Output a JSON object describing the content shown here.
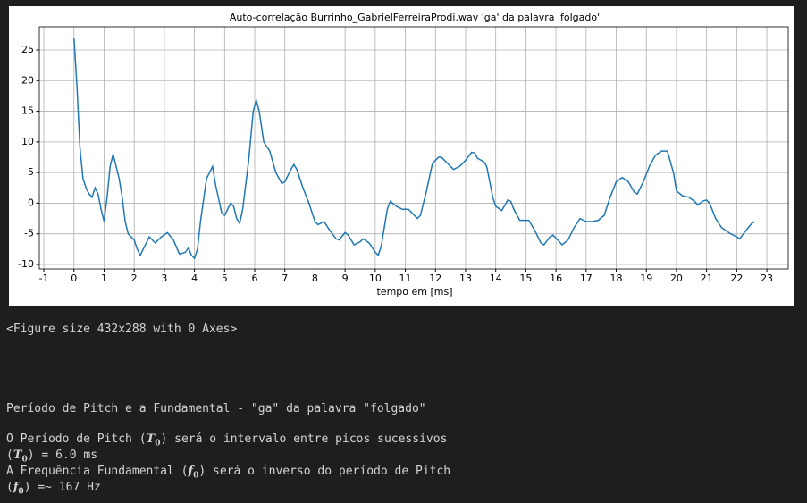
{
  "chart_data": {
    "type": "line",
    "title": "Auto-correlação Burrinho_GabrielFerreiraProdi.wav 'ga' da palavra 'folgado'",
    "x_label": "tempo em [ms]",
    "color": "#1f77b4",
    "grid": true,
    "xlim": [
      -1.15,
      23.71
    ],
    "ylim": [
      -10.73,
      28.79
    ],
    "xticks": [
      -1,
      0,
      1,
      2,
      3,
      4,
      5,
      6,
      7,
      8,
      9,
      10,
      11,
      12,
      13,
      14,
      15,
      16,
      17,
      18,
      19,
      20,
      21,
      22,
      23
    ],
    "yticks": [
      -10,
      -5,
      0,
      5,
      10,
      15,
      20,
      25
    ],
    "x": [
      0,
      0.1,
      0.2,
      0.3,
      0.4,
      0.5,
      0.6,
      0.7,
      0.8,
      0.9,
      1.0,
      1.1,
      1.2,
      1.3,
      1.4,
      1.5,
      1.6,
      1.7,
      1.8,
      2.0,
      2.1,
      2.2,
      2.3,
      2.5,
      2.7,
      2.9,
      3.1,
      3.3,
      3.5,
      3.7,
      3.8,
      3.9,
      4.0,
      4.1,
      4.2,
      4.4,
      4.6,
      4.7,
      4.9,
      5.0,
      5.2,
      5.3,
      5.4,
      5.5,
      5.6,
      5.8,
      5.95,
      6.05,
      6.15,
      6.3,
      6.5,
      6.7,
      6.9,
      7.0,
      7.2,
      7.3,
      7.4,
      7.6,
      7.8,
      8.0,
      8.1,
      8.3,
      8.5,
      8.7,
      8.8,
      9.0,
      9.1,
      9.3,
      9.5,
      9.6,
      9.8,
      10.0,
      10.1,
      10.2,
      10.4,
      10.5,
      10.7,
      10.9,
      11.1,
      11.3,
      11.4,
      11.5,
      11.7,
      11.9,
      12.1,
      12.2,
      12.4,
      12.6,
      12.8,
      13.0,
      13.2,
      13.3,
      13.4,
      13.6,
      13.7,
      13.9,
      14.0,
      14.2,
      14.4,
      14.5,
      14.6,
      14.8,
      15.1,
      15.3,
      15.5,
      15.6,
      15.8,
      15.9,
      16.1,
      16.2,
      16.4,
      16.6,
      16.8,
      17.0,
      17.2,
      17.4,
      17.6,
      17.8,
      18.0,
      18.2,
      18.4,
      18.6,
      18.7,
      18.9,
      19.1,
      19.3,
      19.5,
      19.7,
      19.9,
      20.0,
      20.2,
      20.4,
      20.6,
      20.7,
      20.9,
      21.0,
      21.1,
      21.3,
      21.5,
      21.8,
      22.0,
      22.1,
      22.3,
      22.5,
      22.6
    ],
    "values": [
      27,
      19,
      9,
      4,
      2.5,
      1.5,
      1,
      2.5,
      1.5,
      -1,
      -3,
      1,
      6,
      8,
      6,
      4,
      1,
      -3,
      -5,
      -6,
      -7.5,
      -8.5,
      -7.5,
      -5.5,
      -6.5,
      -5.5,
      -4.8,
      -6,
      -8.3,
      -8,
      -7.3,
      -8.5,
      -9,
      -7.5,
      -3,
      4,
      6,
      3,
      -1.5,
      -2,
      0,
      -0.5,
      -2.5,
      -3.3,
      -1,
      7,
      15,
      16.8,
      15,
      10,
      8.5,
      5,
      3.2,
      3.5,
      5.5,
      6.3,
      5.5,
      2.5,
      0,
      -3,
      -3.5,
      -3,
      -4.5,
      -5.8,
      -6,
      -4.8,
      -5.2,
      -6.8,
      -6.3,
      -5.8,
      -6.5,
      -8,
      -8.5,
      -7,
      -1,
      0.3,
      -0.5,
      -1,
      -1,
      -2,
      -2.5,
      -2,
      2,
      6.5,
      7.5,
      7.5,
      6.5,
      5.5,
      6,
      7,
      8.3,
      8.2,
      7.3,
      6.8,
      6,
      1,
      -0.5,
      -1.2,
      0.5,
      0.3,
      -1,
      -2.8,
      -2.8,
      -4.5,
      -6.5,
      -6.8,
      -5.5,
      -5.2,
      -6.2,
      -6.8,
      -6,
      -4,
      -2.5,
      -3,
      -3,
      -2.8,
      -2,
      1,
      3.5,
      4.2,
      3.5,
      1.8,
      1.5,
      3.5,
      6,
      7.8,
      8.5,
      8.5,
      5,
      2,
      1.2,
      1,
      0.3,
      -0.3,
      0.4,
      0.5,
      0,
      -2.5,
      -4,
      -5,
      -5.5,
      -5.8,
      -4.5,
      -3.3,
      -3
    ]
  },
  "output": {
    "figure_note": "<Figure size 432x288 with 0 Axes>",
    "heading": "Período de Pitch e a Fundamental - \"ga\" da palavra \"folgado\"",
    "lines": [
      [
        {
          "text": "O Período de Pitch ("
        },
        {
          "math": "T",
          "sub": "0"
        },
        {
          "text": ") será o intervalo entre picos sucessivos"
        }
      ],
      [
        {
          "text": "("
        },
        {
          "math": "T",
          "sub": "0"
        },
        {
          "text": ") = 6.0 ms"
        }
      ],
      [
        {
          "text": "A Frequência Fundamental ("
        },
        {
          "math": "f",
          "sub": "0"
        },
        {
          "text": ") será o inverso do período de Pitch"
        }
      ],
      [
        {
          "text": "("
        },
        {
          "math": "f",
          "sub": "0"
        },
        {
          "text": ") =~ 167 Hz"
        }
      ]
    ]
  }
}
